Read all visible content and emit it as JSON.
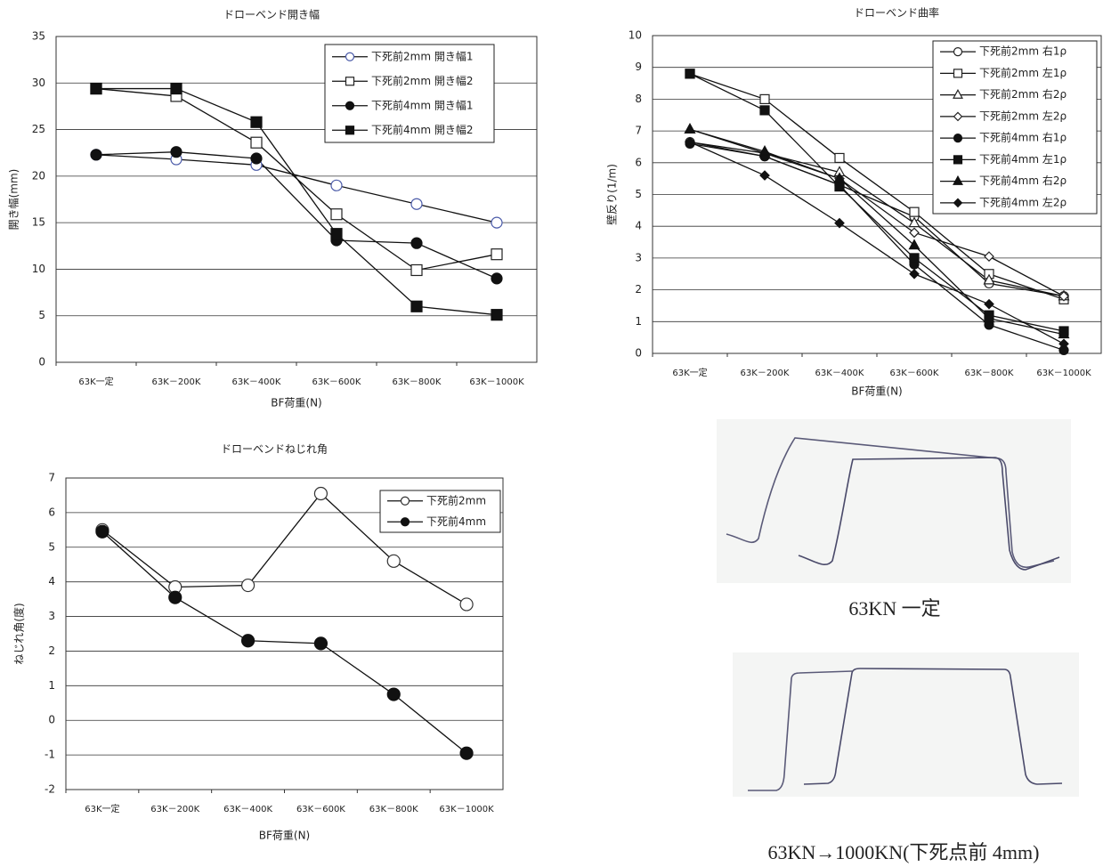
{
  "chart_data": [
    {
      "type": "line",
      "title": "ドローベンド開き幅",
      "x_label": "BF荷重(N)",
      "y_label": "開き幅(mm)",
      "categories": [
        "63K一定",
        "63K－200K",
        "63K－400K",
        "63K－600K",
        "63K－800K",
        "63K－1000K"
      ],
      "ylim": [
        0,
        35
      ],
      "yticks": [
        0,
        5,
        10,
        15,
        20,
        25,
        30,
        35
      ],
      "grid": true,
      "legend": "upper right",
      "series": [
        {
          "name": "下死前2mm 開き幅1",
          "color": "#4a5aa8",
          "marker": "circle",
          "filled": false,
          "values": [
            22.3,
            21.8,
            21.2,
            19.0,
            17.0,
            15.0
          ]
        },
        {
          "name": "下死前2mm 開き幅2",
          "color": "#222222",
          "marker": "square",
          "filled": false,
          "values": [
            29.4,
            28.6,
            23.6,
            15.9,
            9.9,
            11.6
          ]
        },
        {
          "name": "下死前4mm 開き幅1",
          "color": "#111111",
          "marker": "circle",
          "filled": true,
          "values": [
            22.3,
            22.6,
            21.9,
            13.1,
            12.8,
            9.0
          ]
        },
        {
          "name": "下死前4mm 開き幅2",
          "color": "#111111",
          "marker": "square",
          "filled": true,
          "values": [
            29.4,
            29.4,
            25.8,
            13.8,
            6.0,
            5.1
          ]
        }
      ]
    },
    {
      "type": "line",
      "title": "ドローベンド曲率",
      "x_label": "BF荷重(N)",
      "y_label": "壁反り(1/m)",
      "categories": [
        "63K一定",
        "63K－200K",
        "63K－400K",
        "63K－600K",
        "63K－800K",
        "63K－1000K"
      ],
      "ylim": [
        0,
        10
      ],
      "yticks": [
        0,
        1,
        2,
        3,
        4,
        5,
        6,
        7,
        8,
        9,
        10
      ],
      "grid": true,
      "legend": "upper right",
      "series": [
        {
          "name": "下死前2mm 右1ρ",
          "color": "#222222",
          "marker": "circle",
          "filled": false,
          "values": [
            6.65,
            6.2,
            5.3,
            4.3,
            2.2,
            1.8
          ]
        },
        {
          "name": "下死前2mm 左1ρ",
          "color": "#222222",
          "marker": "square",
          "filled": false,
          "values": [
            8.8,
            8.0,
            6.15,
            4.45,
            2.5,
            1.7
          ]
        },
        {
          "name": "下死前2mm 右2ρ",
          "color": "#222222",
          "marker": "triangle",
          "filled": false,
          "values": [
            7.05,
            6.3,
            5.7,
            4.1,
            2.3,
            1.8
          ]
        },
        {
          "name": "下死前2mm 左2ρ",
          "color": "#222222",
          "marker": "diamond",
          "filled": false,
          "values": [
            6.65,
            6.3,
            5.5,
            3.8,
            3.05,
            1.8
          ]
        },
        {
          "name": "下死前4mm 右1ρ",
          "color": "#111111",
          "marker": "circle",
          "filled": true,
          "values": [
            6.6,
            6.2,
            5.3,
            2.8,
            0.9,
            0.1
          ]
        },
        {
          "name": "下死前4mm 左1ρ",
          "color": "#111111",
          "marker": "square",
          "filled": true,
          "values": [
            8.8,
            7.65,
            5.25,
            3.0,
            1.2,
            0.7
          ]
        },
        {
          "name": "下死前4mm 右2ρ",
          "color": "#111111",
          "marker": "triangle",
          "filled": true,
          "values": [
            7.05,
            6.35,
            5.5,
            3.4,
            1.1,
            0.6
          ]
        },
        {
          "name": "下死前4mm 左2ρ",
          "color": "#111111",
          "marker": "diamond",
          "filled": true,
          "values": [
            6.65,
            5.6,
            4.1,
            2.5,
            1.55,
            0.3
          ]
        }
      ]
    },
    {
      "type": "line",
      "title": "ドローベンドねじれ角",
      "x_label": "BF荷重(N)",
      "y_label": "ねじれ角(度)",
      "categories": [
        "63K一定",
        "63K－200K",
        "63K－400K",
        "63K－600K",
        "63K－800K",
        "63K－1000K"
      ],
      "ylim": [
        -2,
        7
      ],
      "yticks": [
        -2,
        -1,
        0,
        1,
        2,
        3,
        4,
        5,
        6,
        7
      ],
      "grid": true,
      "legend": "upper right",
      "series": [
        {
          "name": "下死前2mm",
          "color": "#333333",
          "marker": "circle",
          "filled": false,
          "values": [
            5.5,
            3.85,
            3.9,
            6.55,
            4.6,
            3.35
          ]
        },
        {
          "name": "下死前4mm",
          "color": "#111111",
          "marker": "circle",
          "filled": true,
          "values": [
            5.45,
            3.55,
            2.3,
            2.22,
            0.75,
            -0.95
          ]
        }
      ]
    }
  ],
  "photos": [
    {
      "caption": "63KN 一定"
    },
    {
      "caption": "63KN→1000KN(下死点前 4mm)"
    }
  ]
}
